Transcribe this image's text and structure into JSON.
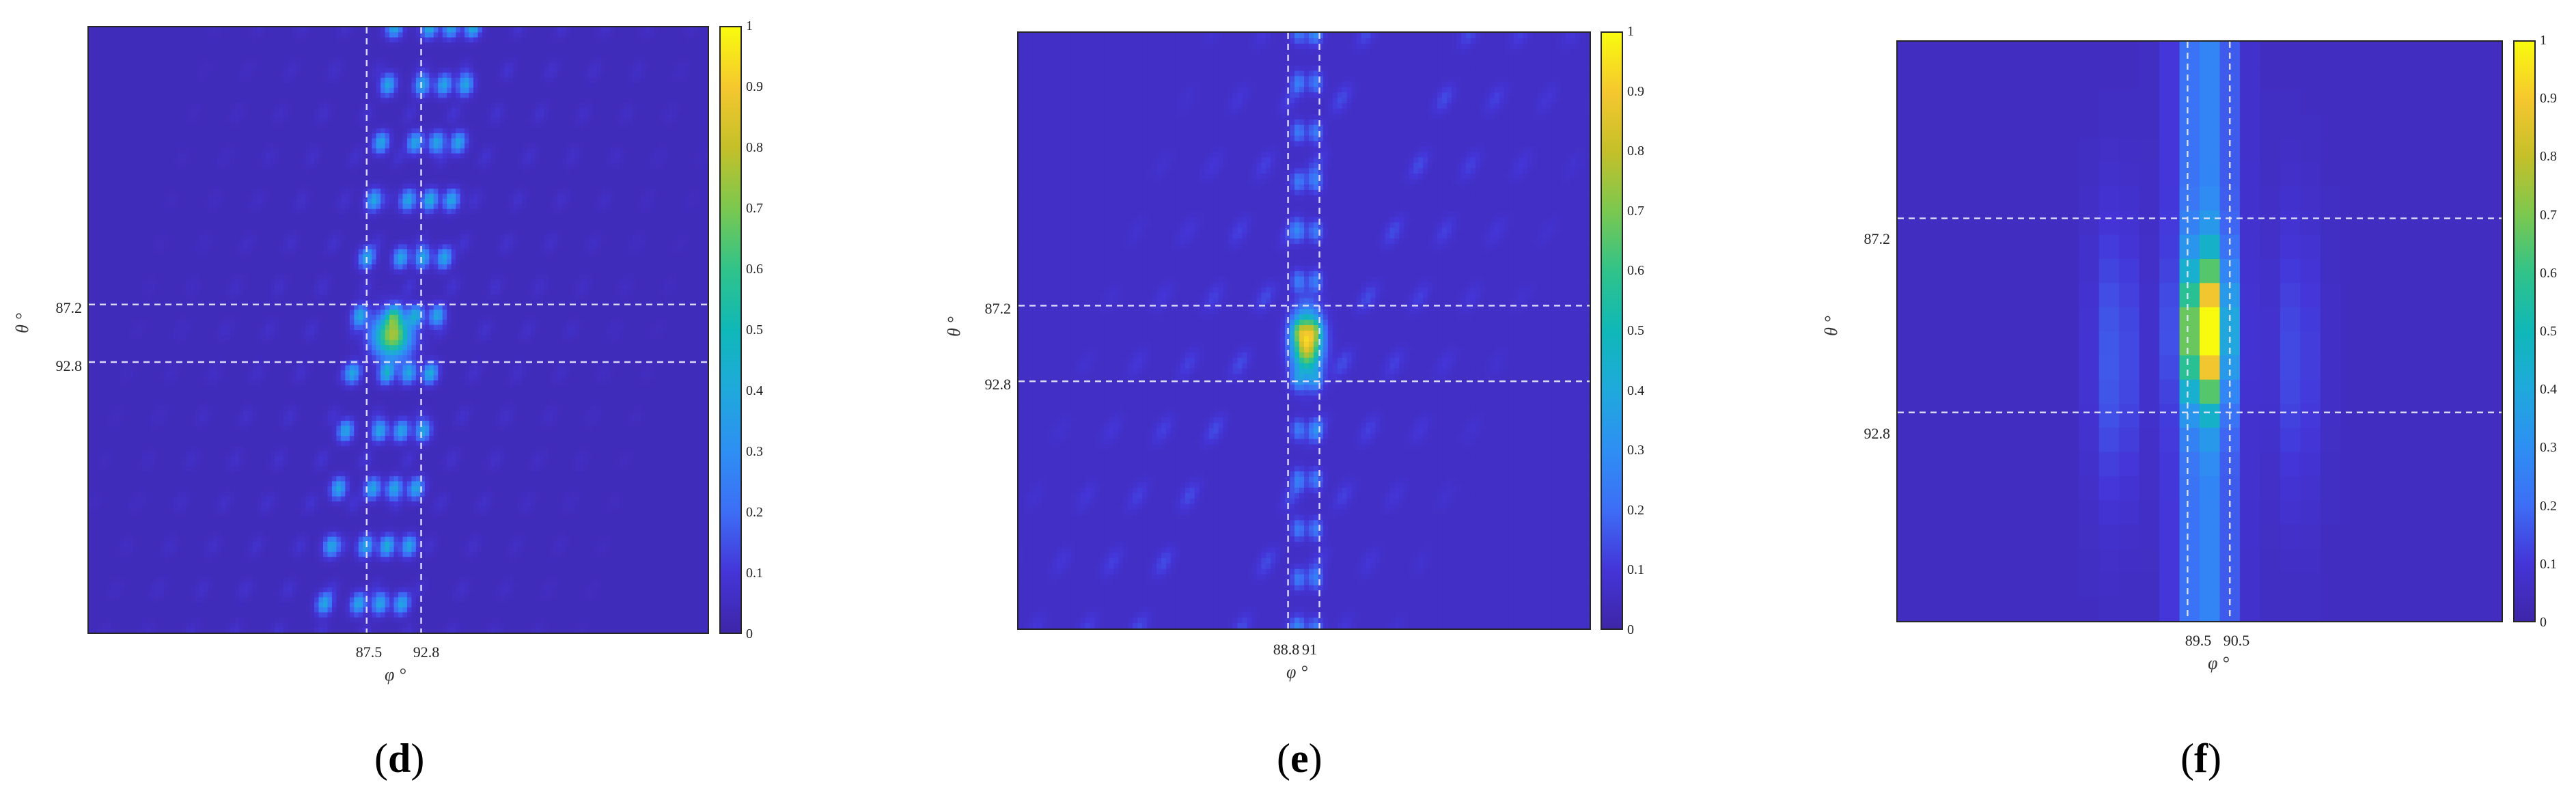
{
  "chart_data": [
    {
      "type": "heatmap",
      "panel": "d",
      "xlabel": "φ °",
      "ylabel": "θ °",
      "xticks": [
        "87.5",
        "92.8"
      ],
      "yticks": [
        "87.2",
        "92.8"
      ],
      "colorbar": {
        "min": 0,
        "max": 1,
        "ticks": [
          "0",
          "0.1",
          "0.2",
          "0.3",
          "0.4",
          "0.5",
          "0.6",
          "0.7",
          "0.8",
          "0.9",
          "1"
        ]
      },
      "pattern": "many sidelobes along slanted band, peaks at intersection",
      "peak": {
        "phi": "between 87.5 and 92.8",
        "theta": "between 87.2 and 92.8",
        "value": 1
      }
    },
    {
      "type": "heatmap",
      "panel": "e",
      "xlabel": "φ °",
      "ylabel": "θ °",
      "xticks": [
        "88.8",
        "91"
      ],
      "yticks": [
        "87.2",
        "92.8"
      ],
      "colorbar": {
        "min": 0,
        "max": 1,
        "ticks": [
          "0",
          "0.1",
          "0.2",
          "0.3",
          "0.4",
          "0.5",
          "0.6",
          "0.7",
          "0.8",
          "0.9",
          "1"
        ]
      },
      "pattern": "single main peak with weaker sidelobes",
      "peak": {
        "phi": "between 88.8 and 91",
        "theta": "between 87.2 and 92.8",
        "value": 1
      }
    },
    {
      "type": "heatmap",
      "panel": "f",
      "xlabel": "φ °",
      "ylabel": "θ °",
      "xticks": [
        "89.5",
        "90.5"
      ],
      "yticks": [
        "87.2",
        "92.8"
      ],
      "colorbar": {
        "min": 0,
        "max": 1,
        "ticks": [
          "0",
          "0.1",
          "0.2",
          "0.3",
          "0.4",
          "0.5",
          "0.6",
          "0.7",
          "0.8",
          "0.9",
          "1"
        ]
      },
      "pattern": "zoomed pixelated main lobe",
      "peak": {
        "phi": "between 89.5 and 90.5",
        "theta": "between 87.2 and 92.8",
        "value": 1
      }
    }
  ],
  "captions": [
    {
      "open": "(",
      "letter": "d",
      "close": ")"
    },
    {
      "open": "(",
      "letter": "e",
      "close": ")"
    },
    {
      "open": "(",
      "letter": "f",
      "close": ")"
    }
  ]
}
